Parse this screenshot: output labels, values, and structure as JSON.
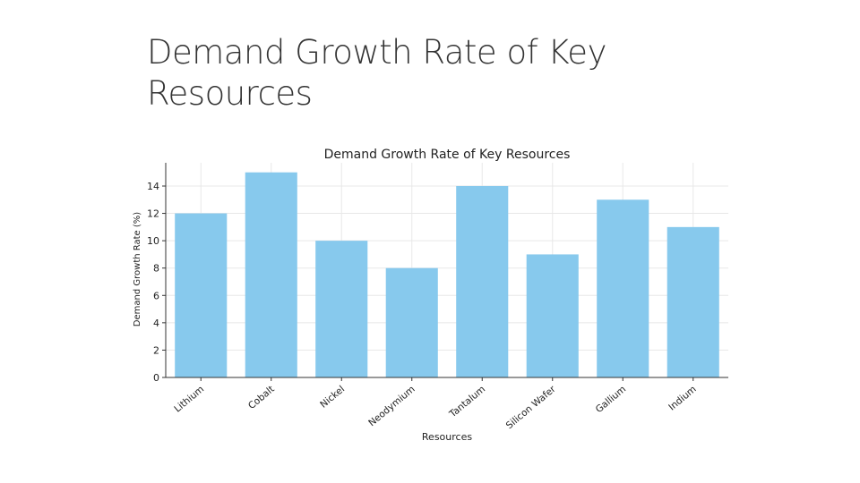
{
  "slide": {
    "title": "Demand Growth Rate of Key Resources"
  },
  "chart_data": {
    "type": "bar",
    "title": "Demand Growth Rate of Key Resources",
    "xlabel": "Resources",
    "ylabel": "Demand Growth Rate (%)",
    "categories": [
      "Lithium",
      "Cobalt",
      "Nickel",
      "Neodymium",
      "Tantalum",
      "Silicon Wafer",
      "Gallium",
      "Indium"
    ],
    "values": [
      12,
      15,
      10,
      8,
      14,
      9,
      13,
      11
    ],
    "ylim": [
      0,
      15.7
    ],
    "yticks": [
      0,
      2,
      4,
      6,
      8,
      10,
      12,
      14
    ],
    "grid": true,
    "bar_color": "#87c9ed",
    "grid_color": "#e8e8e8"
  }
}
